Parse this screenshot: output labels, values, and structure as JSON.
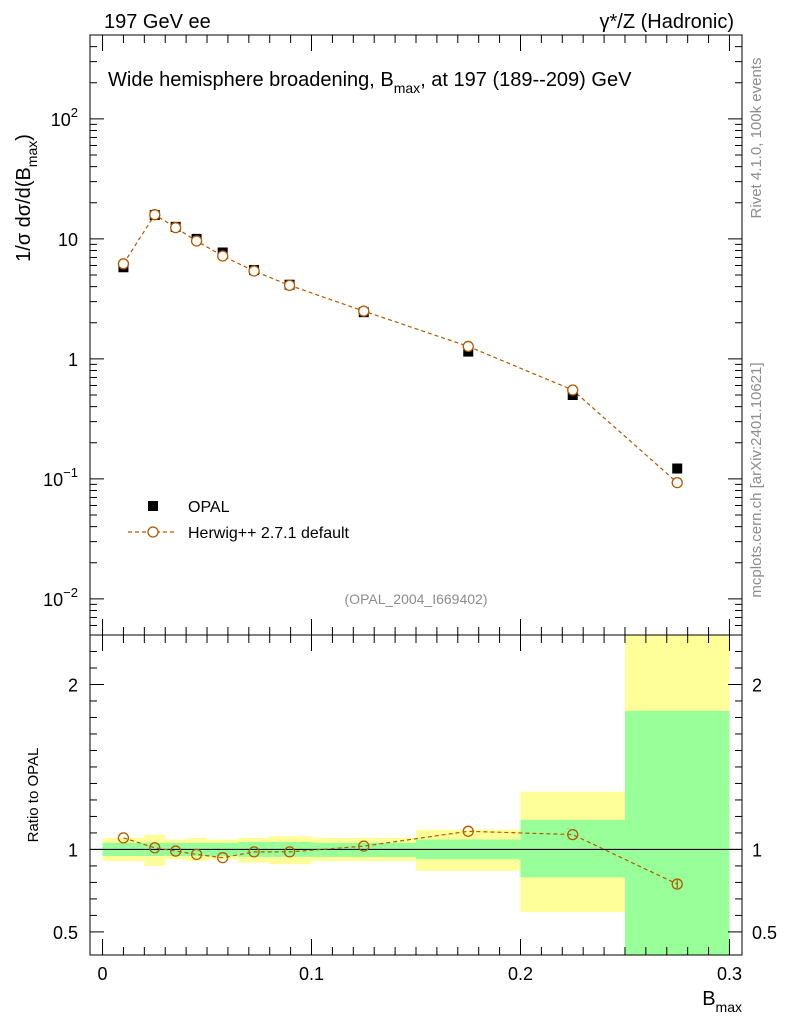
{
  "header": {
    "left": "197 GeV ee",
    "right": "γ*/Z (Hadronic)"
  },
  "side_labels": {
    "rivet": "Rivet 4.1.0,  100k events",
    "mcplots": "mcplots.cern.ch [arXiv:2401.10621]"
  },
  "chart_data": [
    {
      "type": "scatter",
      "panel": "main",
      "title": "Wide hemisphere broadening, B",
      "title_sub": "max",
      "title_suffix": ", at 197 (189--209) GeV",
      "ylabel": "1/σ  dσ/d(B",
      "ylabel_sub": "max",
      "ylabel_suffix": ")",
      "yscale": "log",
      "ylim": [
        0.005,
        500
      ],
      "xlim": [
        -0.006,
        0.306
      ],
      "yticks": [
        {
          "value": 0.01,
          "base": "10",
          "exp": "−2"
        },
        {
          "value": 0.1,
          "base": "10",
          "exp": "−1"
        },
        {
          "value": 1,
          "base": "1",
          "exp": ""
        },
        {
          "value": 10,
          "base": "10",
          "exp": ""
        },
        {
          "value": 100,
          "base": "10",
          "exp": "2"
        }
      ],
      "analysis_id": "(OPAL_2004_I669402)",
      "legend": {
        "placement": "bottom-left",
        "entries": [
          "OPAL",
          "Herwig++ 2.7.1 default"
        ]
      },
      "series": [
        {
          "name": "OPAL",
          "color": "#000000",
          "marker": "square",
          "x": [
            0.01,
            0.025,
            0.035,
            0.045,
            0.0575,
            0.0725,
            0.0895,
            0.125,
            0.175,
            0.225,
            0.275
          ],
          "y": [
            5.8,
            15.8,
            12.6,
            10.0,
            7.7,
            5.5,
            4.15,
            2.45,
            1.15,
            0.5,
            0.122
          ]
        },
        {
          "name": "Herwig++ 2.7.1 default",
          "color": "#b35900",
          "marker": "open-circle",
          "line": "dashed",
          "x": [
            0.01,
            0.025,
            0.035,
            0.045,
            0.0575,
            0.0725,
            0.0895,
            0.125,
            0.175,
            0.225,
            0.275
          ],
          "y": [
            6.2,
            15.9,
            12.4,
            9.6,
            7.2,
            5.4,
            4.1,
            2.5,
            1.27,
            0.55,
            0.093
          ]
        }
      ]
    },
    {
      "type": "band-ratio",
      "panel": "ratio",
      "ylabel": "Ratio to OPAL",
      "xlabel": "B",
      "xlabel_sub": "max",
      "ylim": [
        0.36,
        2.3
      ],
      "xlim": [
        -0.006,
        0.306
      ],
      "xticks": [
        {
          "value": 0,
          "label": "0"
        },
        {
          "value": 0.1,
          "label": "0.1"
        },
        {
          "value": 0.2,
          "label": "0.2"
        },
        {
          "value": 0.3,
          "label": "0.3"
        }
      ],
      "yticks": [
        {
          "value": 0.5,
          "label": "0.5"
        },
        {
          "value": 1,
          "label": "1"
        },
        {
          "value": 2,
          "label": "2"
        }
      ],
      "bins": [
        {
          "lo": 0.0,
          "hi": 0.02,
          "g": [
            0.96,
            1.04
          ],
          "y": [
            0.93,
            1.07
          ]
        },
        {
          "lo": 0.02,
          "hi": 0.03,
          "g": [
            0.96,
            1.04
          ],
          "y": [
            0.9,
            1.09
          ]
        },
        {
          "lo": 0.03,
          "hi": 0.04,
          "g": [
            0.96,
            1.04
          ],
          "y": [
            0.94,
            1.06
          ]
        },
        {
          "lo": 0.04,
          "hi": 0.05,
          "g": [
            0.96,
            1.04
          ],
          "y": [
            0.93,
            1.07
          ]
        },
        {
          "lo": 0.05,
          "hi": 0.065,
          "g": [
            0.96,
            1.04
          ],
          "y": [
            0.94,
            1.06
          ]
        },
        {
          "lo": 0.065,
          "hi": 0.08,
          "g": [
            0.955,
            1.045
          ],
          "y": [
            0.92,
            1.07
          ]
        },
        {
          "lo": 0.08,
          "hi": 0.1,
          "g": [
            0.955,
            1.045
          ],
          "y": [
            0.91,
            1.08
          ]
        },
        {
          "lo": 0.1,
          "hi": 0.15,
          "g": [
            0.955,
            1.04
          ],
          "y": [
            0.93,
            1.07
          ]
        },
        {
          "lo": 0.15,
          "hi": 0.2,
          "g": [
            0.94,
            1.06
          ],
          "y": [
            0.87,
            1.12
          ]
        },
        {
          "lo": 0.2,
          "hi": 0.25,
          "g": [
            0.83,
            1.18
          ],
          "y": [
            0.62,
            1.35
          ]
        },
        {
          "lo": 0.25,
          "hi": 0.3,
          "g": [
            0.36,
            1.84
          ],
          "y": [
            0.36,
            2.3
          ]
        }
      ],
      "series": [
        {
          "name": "Herwig++ 2.7.1 default",
          "color": "#b35900",
          "x": [
            0.01,
            0.025,
            0.035,
            0.045,
            0.0575,
            0.0725,
            0.0895,
            0.125,
            0.175,
            0.225,
            0.275
          ],
          "y": [
            1.07,
            1.01,
            0.99,
            0.97,
            0.95,
            0.985,
            0.985,
            1.02,
            1.11,
            1.09,
            0.79
          ],
          "err": [
            0,
            0,
            0,
            0,
            0,
            0,
            0,
            0,
            0,
            0,
            0.025
          ]
        }
      ],
      "colors": {
        "green_band": "#99ff99",
        "yellow_band": "#ffff99"
      }
    }
  ]
}
